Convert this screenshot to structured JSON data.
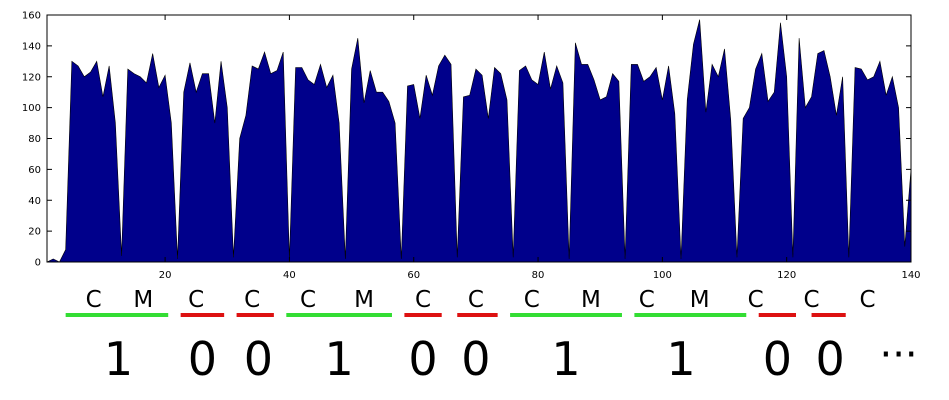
{
  "chart_data": {
    "type": "area",
    "title": "",
    "xlabel": "",
    "ylabel": "",
    "xlim": [
      1,
      140
    ],
    "ylim": [
      0,
      160
    ],
    "xticks": [
      20,
      40,
      60,
      80,
      100,
      120,
      140
    ],
    "yticks": [
      0,
      20,
      40,
      60,
      80,
      100,
      120,
      140,
      160
    ],
    "grid": false,
    "fill_color": "#00008b",
    "series": [
      {
        "x": [
          1,
          2,
          3,
          4,
          5,
          6,
          7,
          8,
          9,
          10,
          11,
          12,
          13,
          14,
          15,
          16,
          17,
          18,
          19,
          20,
          21,
          22,
          23,
          24,
          25,
          26,
          27,
          28,
          29,
          30,
          31,
          32,
          33,
          34,
          35,
          36,
          37,
          38,
          39,
          40,
          41,
          42,
          43,
          44,
          45,
          46,
          47,
          48,
          49,
          50,
          51,
          52,
          53,
          54,
          55,
          56,
          57,
          58,
          59,
          60,
          61,
          62,
          63,
          64,
          65,
          66,
          67,
          68,
          69,
          70,
          71,
          72,
          73,
          74,
          75,
          76,
          77,
          78,
          79,
          80,
          81,
          82,
          83,
          84,
          85,
          86,
          87,
          88,
          89,
          90,
          91,
          92,
          93,
          94,
          95,
          96,
          97,
          98,
          99,
          100,
          101,
          102,
          103,
          104,
          105,
          106,
          107,
          108,
          109,
          110,
          111,
          112,
          113,
          114,
          115,
          116,
          117,
          118,
          119,
          120,
          121,
          122,
          123,
          124,
          125,
          126,
          127,
          128,
          129,
          130,
          131,
          132,
          133,
          134,
          135,
          136,
          137,
          138,
          139,
          140
        ],
        "values": [
          0,
          2,
          0,
          8,
          130,
          127,
          120,
          123,
          130,
          107,
          127,
          90,
          4,
          125,
          122,
          120,
          116,
          135,
          113,
          121,
          90,
          2,
          110,
          129,
          110,
          122,
          122,
          90,
          130,
          100,
          3,
          80,
          95,
          127,
          125,
          136,
          122,
          124,
          136,
          2,
          126,
          126,
          118,
          115,
          128,
          113,
          121,
          90,
          2,
          125,
          145,
          103,
          124,
          110,
          110,
          104,
          90,
          2,
          114,
          115,
          93,
          121,
          108,
          127,
          134,
          128,
          3,
          107,
          108,
          125,
          121,
          93,
          126,
          122,
          105,
          3,
          124,
          127,
          118,
          115,
          136,
          112,
          127,
          116,
          2,
          142,
          128,
          128,
          118,
          105,
          107,
          122,
          117,
          2,
          128,
          128,
          117,
          120,
          126,
          105,
          127,
          96,
          2,
          105,
          141,
          157,
          97,
          128,
          120,
          138,
          92,
          3,
          93,
          100,
          125,
          135,
          104,
          110,
          155,
          120,
          3,
          145,
          100,
          107,
          135,
          137,
          120,
          95,
          120,
          3,
          126,
          125,
          118,
          120,
          130,
          108,
          120,
          100,
          10,
          60
        ]
      }
    ]
  },
  "annotations": {
    "row_letters": [
      {
        "text": "C",
        "x": 8.5
      },
      {
        "text": "M",
        "x": 16.5
      },
      {
        "text": "C",
        "x": 25
      },
      {
        "text": "C",
        "x": 34
      },
      {
        "text": "C",
        "x": 43
      },
      {
        "text": "M",
        "x": 52
      },
      {
        "text": "C",
        "x": 61.5
      },
      {
        "text": "C",
        "x": 70
      },
      {
        "text": "C",
        "x": 79
      },
      {
        "text": "M",
        "x": 88.5
      },
      {
        "text": "C",
        "x": 97.5
      },
      {
        "text": "M",
        "x": 106
      },
      {
        "text": "C",
        "x": 115
      },
      {
        "text": "C",
        "x": 124
      },
      {
        "text": "C",
        "x": 133
      }
    ],
    "bars": [
      {
        "x0": 4,
        "x1": 20.5,
        "color": "#33dd33"
      },
      {
        "x0": 22.5,
        "x1": 29.5,
        "color": "#dd1111"
      },
      {
        "x0": 31.5,
        "x1": 37.5,
        "color": "#dd1111"
      },
      {
        "x0": 39.5,
        "x1": 56.5,
        "color": "#33dd33"
      },
      {
        "x0": 58.5,
        "x1": 64.5,
        "color": "#dd1111"
      },
      {
        "x0": 67,
        "x1": 73.5,
        "color": "#dd1111"
      },
      {
        "x0": 75.5,
        "x1": 93.5,
        "color": "#33dd33"
      },
      {
        "x0": 95.5,
        "x1": 113.5,
        "color": "#33dd33"
      },
      {
        "x0": 115.5,
        "x1": 121.5,
        "color": "#dd1111"
      },
      {
        "x0": 124,
        "x1": 129.5,
        "color": "#dd1111"
      }
    ],
    "bits": [
      {
        "text": "1",
        "x": 12.5
      },
      {
        "text": "0",
        "x": 26
      },
      {
        "text": "0",
        "x": 35
      },
      {
        "text": "1",
        "x": 48
      },
      {
        "text": "0",
        "x": 61.5
      },
      {
        "text": "0",
        "x": 70
      },
      {
        "text": "1",
        "x": 84.5
      },
      {
        "text": "1",
        "x": 103
      },
      {
        "text": "0",
        "x": 118.5
      },
      {
        "text": "0",
        "x": 127
      }
    ],
    "ellipsis": {
      "text": "···",
      "x": 138
    }
  }
}
